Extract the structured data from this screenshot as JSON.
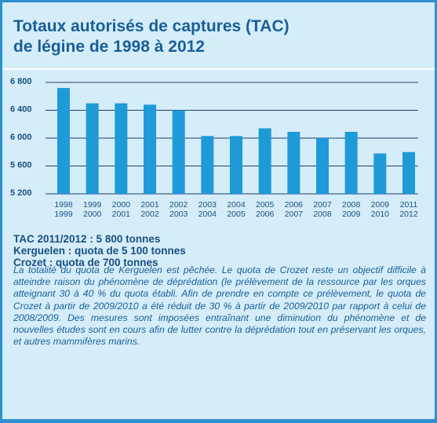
{
  "chart_data": {
    "type": "bar",
    "title": [
      "Totaux autorisés de captures (TAC)",
      "de légine de 1998 à 2012"
    ],
    "categories": [
      [
        "1998",
        "1999"
      ],
      [
        "1999",
        "2000"
      ],
      [
        "2000",
        "2001"
      ],
      [
        "2001",
        "2002"
      ],
      [
        "2002",
        "2003"
      ],
      [
        "2003",
        "2004"
      ],
      [
        "2004",
        "2005"
      ],
      [
        "2005",
        "2006"
      ],
      [
        "2006",
        "2007"
      ],
      [
        "2007",
        "2008"
      ],
      [
        "2008",
        "2009"
      ],
      [
        "2009",
        "2010"
      ],
      [
        "2011",
        "2012"
      ]
    ],
    "values": [
      6720,
      6500,
      6500,
      6480,
      6400,
      6030,
      6030,
      6140,
      6090,
      6000,
      6090,
      5780,
      5800
    ],
    "color": "#1e9ad8",
    "ylim": [
      5200,
      6800
    ],
    "yticks": [
      {
        "value": 5200,
        "label": "5 200"
      },
      {
        "value": 5600,
        "label": "5 600"
      },
      {
        "value": 6000,
        "label": "6 000"
      },
      {
        "value": 6400,
        "label": "6 400"
      },
      {
        "value": 6800,
        "label": "6 800"
      }
    ],
    "grid": true
  },
  "summary": [
    "TAC 2011/2012 : 5 800 tonnes",
    "Kerguelen : quota de 5 100 tonnes",
    "Crozet : quota de 700 tonnes"
  ],
  "body": "La totalité du quota de Kerguelen est pêchée. Le quota de Crozet reste un objectif difficile à atteindre raison du phénomène de déprédation (le prélèvement de la ressource par les orques atteignant 30 à 40 % du quota établi. Afin de prendre en compte ce prélèvement, le quota de Crozet à partir de 2009/2010 a été réduit de 30 % à partir de 2009/2010 par rapport à celui de 2008/2009. Des mesures sont imposées entraînant une diminution du phénomène et de nouvelles études sont en cours afin de lutter contre la déprédation tout en préservant les orques, et autres mammifères marins."
}
